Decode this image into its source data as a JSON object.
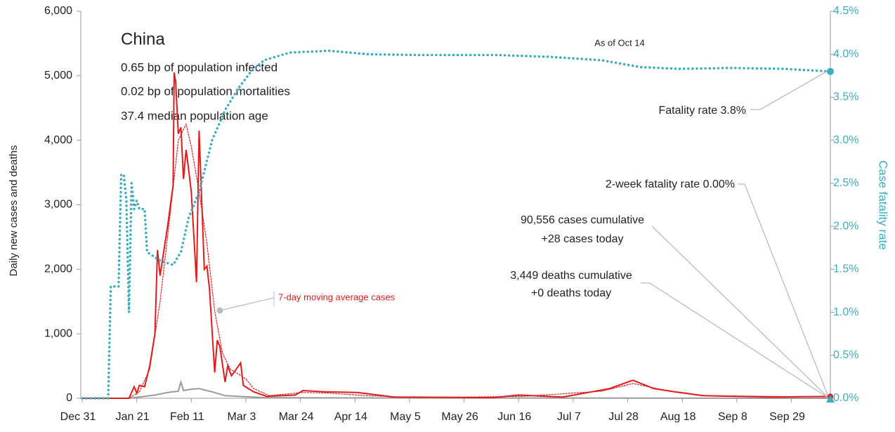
{
  "chart_data": {
    "type": "line",
    "info": {
      "title": "China",
      "lines": [
        "0.65 bp of population infected",
        "0.02 bp of population mortalities",
        "37.4 median population age"
      ]
    },
    "as_of": "As of Oct 14",
    "ylabel": "Daily new cases and deaths",
    "y2label": "Case fatality rate",
    "xlim": [
      0,
      288
    ],
    "xticks": [
      {
        "value": 0,
        "label": "Dec 31"
      },
      {
        "value": 21,
        "label": "Jan 21"
      },
      {
        "value": 42,
        "label": "Feb 11"
      },
      {
        "value": 63,
        "label": "Mar 3"
      },
      {
        "value": 84,
        "label": "Mar 24"
      },
      {
        "value": 105,
        "label": "Apr 14"
      },
      {
        "value": 126,
        "label": "May 5"
      },
      {
        "value": 147,
        "label": "May 26"
      },
      {
        "value": 168,
        "label": "Jun 16"
      },
      {
        "value": 189,
        "label": "Jul 7"
      },
      {
        "value": 210,
        "label": "Jul 28"
      },
      {
        "value": 231,
        "label": "Aug 18"
      },
      {
        "value": 252,
        "label": "Sep 8"
      },
      {
        "value": 273,
        "label": "Sep 29"
      }
    ],
    "ylim": [
      0,
      6000
    ],
    "yticks": [
      0,
      {
        "value": 1000,
        "label": "1,000"
      },
      {
        "value": 2000,
        "label": "2,000"
      },
      {
        "value": 3000,
        "label": "3,000"
      },
      {
        "value": 4000,
        "label": "4,000"
      },
      {
        "value": 5000,
        "label": "5,000"
      },
      {
        "value": 6000,
        "label": "6,000"
      }
    ],
    "y2lim": [
      0,
      4.5
    ],
    "y2ticks": [
      {
        "value": 0,
        "label": "0.0%"
      },
      {
        "value": 0.5,
        "label": "0.5%"
      },
      {
        "value": 1,
        "label": "1.0%"
      },
      {
        "value": 1.5,
        "label": "1.5%"
      },
      {
        "value": 2,
        "label": "2.0%"
      },
      {
        "value": 2.5,
        "label": "2.5%"
      },
      {
        "value": 3,
        "label": "3.0%"
      },
      {
        "value": 3.5,
        "label": "3.5%"
      },
      {
        "value": 4,
        "label": "4.0%"
      },
      {
        "value": 4.5,
        "label": "4.5%"
      }
    ],
    "series": [
      {
        "color": "#9a9a9a",
        "style": "solid",
        "x": [
          0,
          18,
          22,
          28,
          33,
          35,
          37,
          38,
          39,
          42,
          45,
          48,
          50,
          55,
          60,
          70,
          100,
          200,
          288
        ],
        "values": [
          0,
          0,
          20,
          50,
          90,
          100,
          110,
          250,
          120,
          140,
          150,
          120,
          100,
          40,
          30,
          10,
          5,
          3,
          0
        ]
      },
      {
        "color": "#e31a1c",
        "style": "dotted",
        "x": [
          0,
          18,
          22,
          26,
          30,
          34,
          37,
          40,
          42,
          45,
          48,
          51,
          54,
          57,
          60,
          63,
          66,
          72,
          85,
          95,
          110,
          130,
          170,
          200,
          212,
          225,
          240,
          288
        ],
        "values": [
          0,
          0,
          100,
          450,
          1500,
          2900,
          4000,
          4250,
          3900,
          3200,
          2400,
          1350,
          700,
          450,
          380,
          300,
          150,
          40,
          90,
          80,
          40,
          10,
          30,
          110,
          230,
          120,
          40,
          20
        ]
      },
      {
        "color": "#e31a1c",
        "style": "solid",
        "x": [
          0,
          18,
          20,
          21,
          22,
          24,
          26,
          28,
          29,
          30,
          33,
          35,
          35.4,
          36,
          37,
          38,
          39,
          40,
          40.5,
          42,
          44,
          45,
          47,
          48,
          49,
          51,
          52,
          53,
          55,
          56,
          57.5,
          61,
          62,
          66,
          71,
          82,
          85,
          93,
          106,
          120,
          158,
          168,
          185,
          203,
          212,
          220,
          228,
          239,
          266,
          288
        ],
        "values": [
          0,
          0,
          180,
          80,
          200,
          180,
          500,
          1000,
          2300,
          1900,
          2700,
          3300,
          5050,
          4900,
          4100,
          4200,
          3400,
          3850,
          3700,
          3200,
          1800,
          4150,
          2000,
          2050,
          1700,
          400,
          900,
          800,
          250,
          500,
          350,
          550,
          200,
          100,
          30,
          50,
          120,
          100,
          90,
          20,
          10,
          50,
          20,
          150,
          280,
          150,
          100,
          40,
          20,
          28
        ]
      },
      {
        "color": "#3aaec0",
        "style": "dotted",
        "axis": "y2",
        "x": [
          0,
          10,
          11,
          14,
          15,
          16,
          17,
          18,
          19,
          20,
          21,
          22,
          24,
          25,
          30,
          35,
          38,
          41,
          45,
          50,
          55,
          60,
          65,
          70,
          80,
          95,
          110,
          130,
          160,
          180,
          200,
          215,
          230,
          250,
          270,
          288
        ],
        "values": [
          0,
          0,
          1.3,
          1.3,
          2.6,
          2.6,
          2.3,
          1.0,
          2.5,
          2.2,
          2.3,
          2.2,
          2.2,
          1.7,
          1.6,
          1.55,
          1.7,
          2.1,
          2.4,
          3.0,
          3.35,
          3.6,
          3.8,
          3.93,
          4.02,
          4.04,
          4.0,
          3.99,
          3.99,
          3.97,
          3.93,
          3.85,
          3.83,
          3.84,
          3.83,
          3.8
        ]
      }
    ],
    "annotations": [
      "7-day moving average cases",
      "Fatality rate 3.8%",
      "2-week fatality rate 0.00%",
      "90,556 cases cumulative",
      "+28 cases today",
      "3,449 deaths cumulative",
      "+0 deaths today"
    ]
  }
}
